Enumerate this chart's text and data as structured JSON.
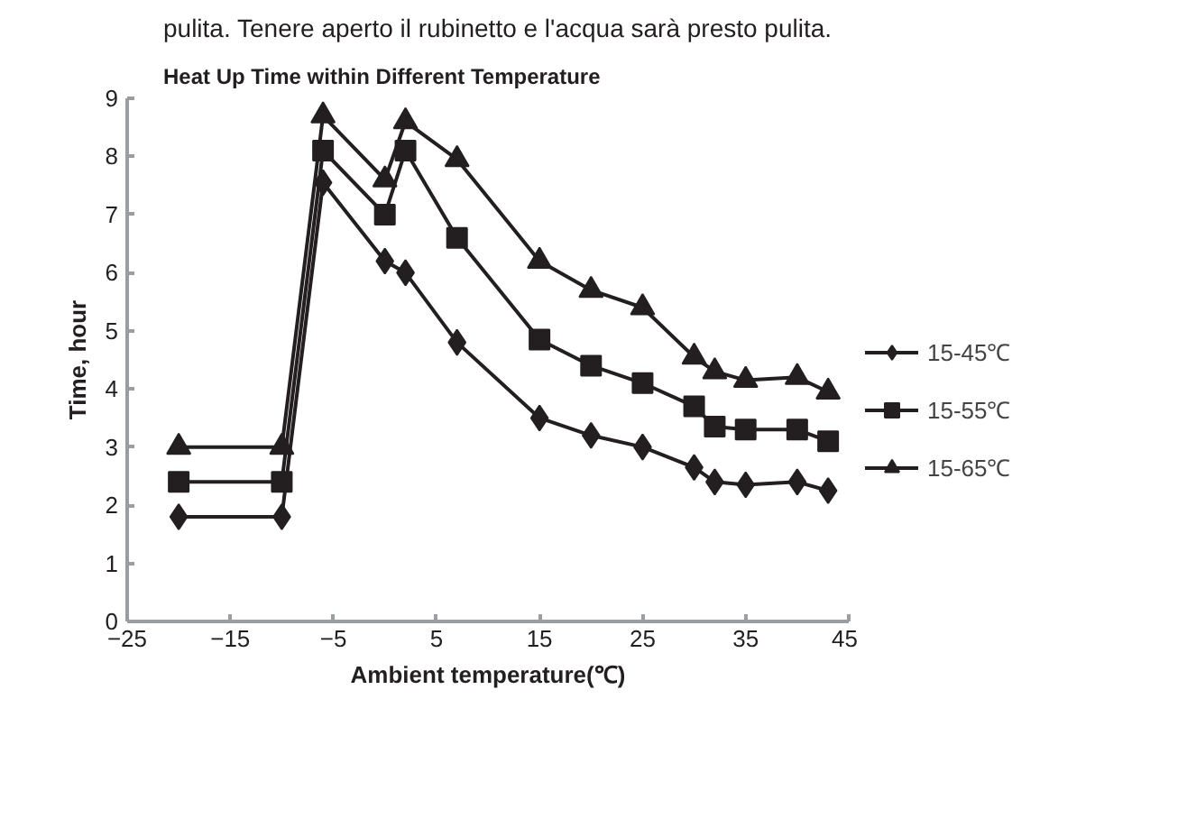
{
  "chart_data": {
    "type": "line",
    "title": "Heat Up Time within Different Temperature",
    "xlabel": "Ambient temperature(℃)",
    "ylabel": "Time, hour",
    "annotations": [
      "pulita. Tenere aperto il rubinetto e l'acqua sarà presto pulita."
    ],
    "x": [
      -20,
      -10,
      -6,
      0,
      2,
      7,
      15,
      20,
      25,
      30,
      32,
      35,
      40,
      43
    ],
    "series": [
      {
        "name": "15-45℃",
        "color": "#231f20",
        "marker": "diamond",
        "values": [
          1.8,
          1.8,
          7.55,
          6.2,
          6.0,
          4.8,
          3.5,
          3.2,
          3.0,
          2.65,
          2.4,
          2.35,
          2.4,
          2.25
        ]
      },
      {
        "name": "15-55℃",
        "color": "#231f20",
        "marker": "square",
        "values": [
          2.4,
          2.4,
          8.1,
          7.0,
          8.1,
          6.6,
          4.85,
          4.4,
          4.1,
          3.7,
          3.35,
          3.3,
          3.3,
          3.1
        ]
      },
      {
        "name": "15-65℃",
        "color": "#231f20",
        "marker": "triangle",
        "values": [
          3.0,
          3.0,
          8.7,
          7.6,
          8.6,
          7.95,
          6.2,
          5.7,
          5.4,
          4.55,
          4.3,
          4.15,
          4.2,
          3.95
        ]
      }
    ],
    "xlim": [
      -25,
      45
    ],
    "xticks": [
      -25,
      -15,
      -5,
      5,
      15,
      25,
      35,
      45
    ],
    "ylim": [
      0,
      9
    ],
    "yticks": [
      0,
      1,
      2,
      3,
      4,
      5,
      6,
      7,
      8,
      9
    ],
    "grid": false,
    "legend": "right",
    "line_style": "solid"
  }
}
